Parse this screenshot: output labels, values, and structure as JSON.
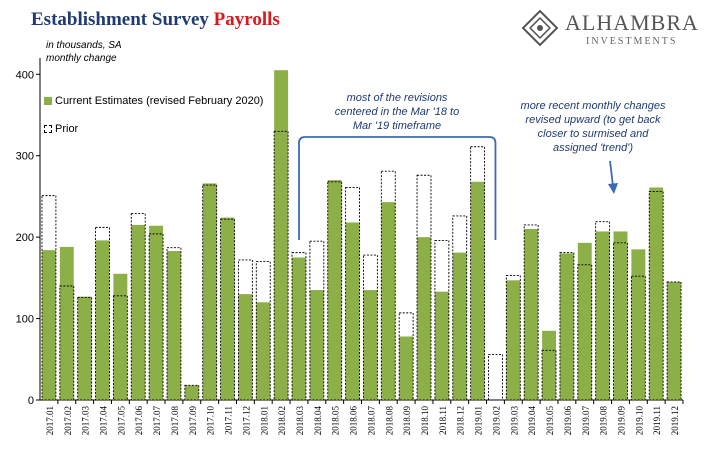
{
  "header": {
    "title_part1": "Establishment Survey",
    "title_part2": "Payrolls",
    "logo_name": "ALHAMBRA",
    "logo_sub": "INVESTMENTS",
    "units_line1": "in thousands, SA",
    "units_line2": "monthly change"
  },
  "legend": {
    "current": "Current Estimates (revised February 2020)",
    "prior": "Prior"
  },
  "annotations": {
    "revisions": [
      "most of the revisions",
      "centered in the Mar '18 to",
      "Mar '19 timeframe"
    ],
    "recent": [
      "more recent monthly changes",
      "revised upward (to get back",
      "closer to surmised and",
      "assigned 'trend')"
    ]
  },
  "colors": {
    "current": "#8daf48",
    "prior_outline": "#000000",
    "title_blue": "#1f3b73",
    "title_red": "#e0161b",
    "annotation": "#1f3b73",
    "bracket": "#3b6bb5"
  },
  "chart_data": {
    "type": "bar",
    "categories": [
      "2017.01",
      "2017.02",
      "2017.03",
      "2017.04",
      "2017.05",
      "2017.06",
      "2017.07",
      "2017.08",
      "2017.09",
      "2017.10",
      "2017.11",
      "2017.12",
      "2018.01",
      "2018.02",
      "2018.03",
      "2018.04",
      "2018.05",
      "2018.06",
      "2018.07",
      "2018.08",
      "2018.09",
      "2018.10",
      "2018.11",
      "2018.12",
      "2019.01",
      "2019.02",
      "2019.03",
      "2019.04",
      "2019.05",
      "2019.06",
      "2019.07",
      "2019.08",
      "2019.09",
      "2019.10",
      "2019.11",
      "2019.12"
    ],
    "series": [
      {
        "name": "Current Estimates (revised February 2020)",
        "style": "filled",
        "values": [
          184,
          188,
          127,
          196,
          155,
          215,
          214,
          183,
          18,
          266,
          224,
          130,
          120,
          405,
          175,
          135,
          270,
          218,
          135,
          243,
          78,
          200,
          133,
          181,
          268,
          0,
          147,
          210,
          85,
          180,
          193,
          207,
          207,
          185,
          261,
          145
        ]
      },
      {
        "name": "Prior",
        "style": "dashed-outline",
        "values": [
          251,
          140,
          126,
          212,
          128,
          229,
          204,
          187,
          18,
          264,
          222,
          172,
          170,
          330,
          181,
          195,
          268,
          261,
          178,
          281,
          107,
          276,
          196,
          226,
          311,
          56,
          153,
          215,
          61,
          181,
          166,
          219,
          193,
          152,
          256,
          145
        ]
      }
    ],
    "ylim": [
      0,
      420
    ],
    "yticks": [
      0,
      100,
      200,
      300,
      400
    ],
    "grid": false,
    "legend_position": "top-left"
  }
}
